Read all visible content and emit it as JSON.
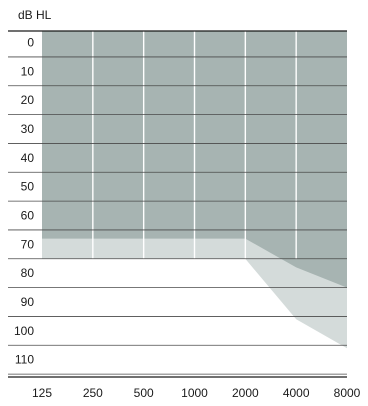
{
  "chart_data": {
    "type": "area",
    "title": "",
    "xlabel": "",
    "ylabel": "dB HL",
    "x_scale": "log",
    "x_ticks": [
      125,
      250,
      500,
      1000,
      2000,
      4000,
      8000
    ],
    "x_tick_labels": [
      "125",
      "250",
      "500",
      "1000",
      "2000",
      "4000",
      "8000"
    ],
    "y_ticks": [
      0,
      10,
      20,
      30,
      40,
      50,
      60,
      70,
      80,
      90,
      100,
      110
    ],
    "y_tick_labels": [
      "0",
      "10",
      "20",
      "30",
      "40",
      "50",
      "60",
      "70",
      "80",
      "90",
      "100",
      "110"
    ],
    "ylim": [
      -4,
      116
    ],
    "y_inverted": true,
    "grid": {
      "horizontal": true,
      "vertical": true
    },
    "series": [
      {
        "color": "#a7b4b2",
        "x": [
          125,
          250,
          500,
          1000,
          2000,
          4000,
          8000
        ],
        "y_top": [
          -4,
          -4,
          -4,
          -4,
          -4,
          -4,
          -4
        ],
        "y_bottom": [
          75,
          75,
          75,
          75,
          75,
          85,
          85
        ]
      },
      {
        "color": "#d4dbda",
        "x": [
          125,
          250,
          500,
          1000,
          2000,
          4000,
          8000
        ],
        "y_top": [
          68,
          68,
          68,
          68,
          68,
          78,
          85
        ],
        "y_bottom": [
          75,
          75,
          75,
          75,
          75,
          96,
          106
        ]
      }
    ]
  }
}
